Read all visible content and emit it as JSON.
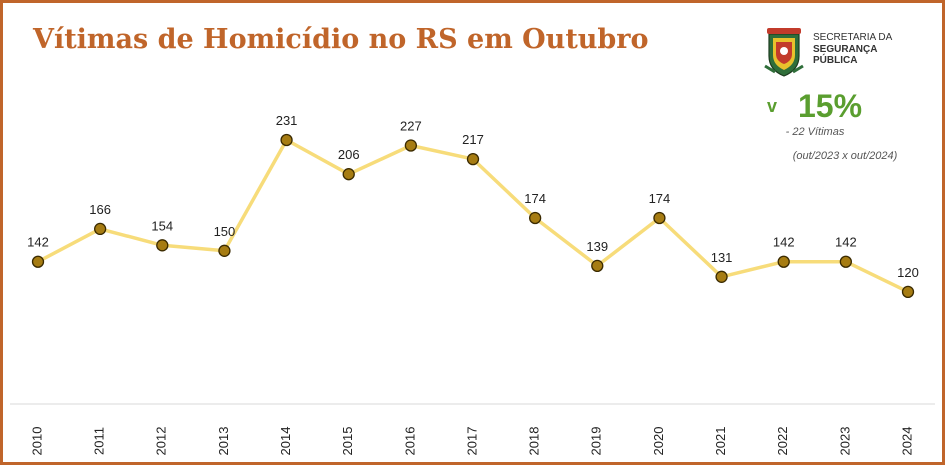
{
  "header": {
    "title": "Vítimas de Homicídio no RS em Outubro"
  },
  "brand": {
    "line1": "SECRETARIA DA",
    "line2": "SEGURANÇA",
    "line3": "PÚBLICA",
    "crest_icon": "rs-state-coat-of-arms"
  },
  "kpi": {
    "arrow": "v",
    "value": "15%",
    "subtitle": "- 22 Vítimas",
    "period": "(out/2023 x out/2024)",
    "color": "#5a9e2f"
  },
  "colors": {
    "frame": "#c0652a",
    "title": "#c0652a",
    "line": "#f7dc7a",
    "marker_fill": "#a67c12",
    "marker_stroke": "#3a2a00"
  },
  "chart_data": {
    "type": "line",
    "categories": [
      "2010",
      "2011",
      "2012",
      "2013",
      "2014",
      "2015",
      "2016",
      "2017",
      "2018",
      "2019",
      "2020",
      "2021",
      "2022",
      "2023",
      "2024"
    ],
    "values": [
      142,
      166,
      154,
      150,
      231,
      206,
      227,
      217,
      174,
      139,
      174,
      131,
      142,
      142,
      120
    ],
    "data_labels": [
      "142",
      "166",
      "154",
      "150",
      "231",
      "206",
      "227",
      "217",
      "174",
      "139",
      "174",
      "131",
      "142",
      "142",
      "120"
    ],
    "ylim": [
      0,
      300
    ],
    "grid": false,
    "legend": "none",
    "x_tick_rotation": "vertical"
  }
}
